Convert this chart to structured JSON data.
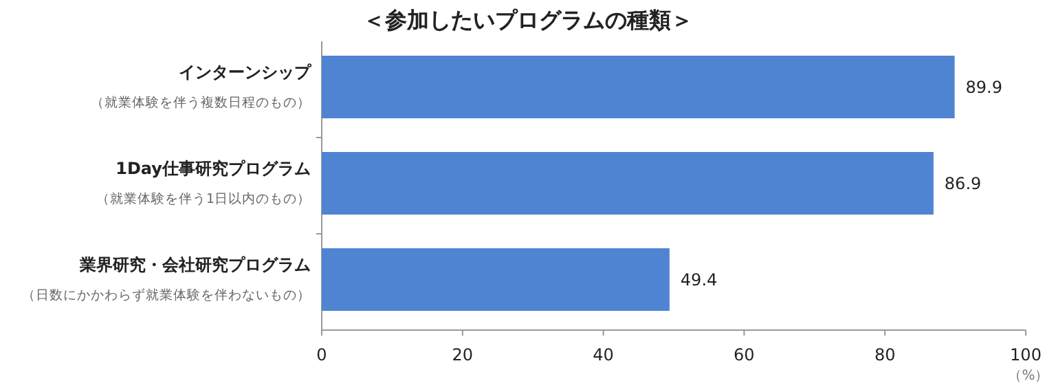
{
  "chart_data": {
    "type": "bar",
    "orientation": "horizontal",
    "title": "＜参加したいプログラムの種類＞",
    "xlabel": "（%）",
    "categories": [
      "**インターンシップ**（就業体験を伴う複数日程のもの）",
      "**1Day仕事研究プログラム**（就業体験を伴う1日以内のもの）",
      "**業界研究・会社研究プログラム**（日数にかかわらず就業体験を伴わないもの）"
    ],
    "values": [
      89.9,
      86.9,
      49.4
    ],
    "color": "#4f84d2",
    "xlim": [
      0,
      100
    ],
    "xticks": [
      0,
      20,
      40,
      60,
      80,
      100
    ],
    "data_labels": true,
    "grid": false
  }
}
